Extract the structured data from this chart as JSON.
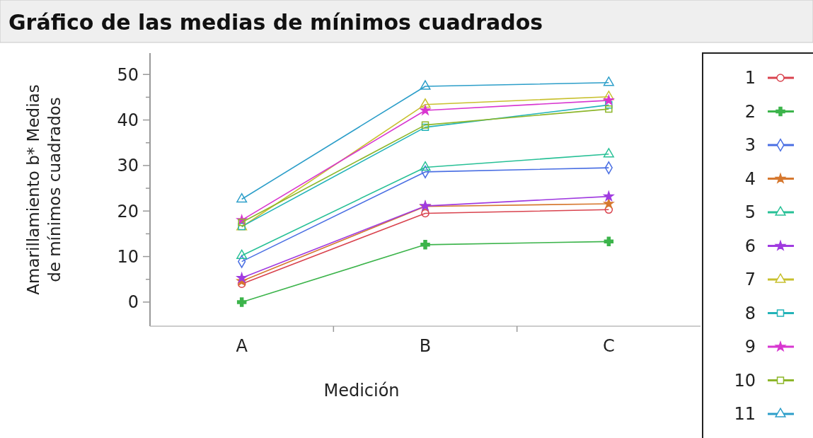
{
  "chart_data": {
    "type": "line",
    "title": "Gráfico de las medias de mínimos cuadrados",
    "xlabel": "Medición",
    "ylabel": "Amarillamiento b* Medias\nde mínimos cuadrados",
    "categories": [
      "A",
      "B",
      "C"
    ],
    "series": [
      {
        "name": "1",
        "color": "#d9434e",
        "marker": "circle",
        "values": [
          4.0,
          19.5,
          20.3
        ]
      },
      {
        "name": "2",
        "color": "#3cb44b",
        "marker": "cross",
        "values": [
          0,
          12.6,
          13.3
        ]
      },
      {
        "name": "3",
        "color": "#4a6fe3",
        "marker": "diamond",
        "values": [
          8.9,
          28.6,
          29.5
        ]
      },
      {
        "name": "4",
        "color": "#d6782f",
        "marker": "star",
        "values": [
          4.6,
          21.0,
          21.6
        ]
      },
      {
        "name": "5",
        "color": "#27c096",
        "marker": "triangle",
        "values": [
          10.2,
          29.6,
          32.5
        ]
      },
      {
        "name": "6",
        "color": "#a03be0",
        "marker": "star",
        "values": [
          5.3,
          21.1,
          23.2
        ]
      },
      {
        "name": "7",
        "color": "#c8c02e",
        "marker": "triangle",
        "values": [
          16.5,
          43.4,
          45.1
        ]
      },
      {
        "name": "8",
        "color": "#22b3b8",
        "marker": "square",
        "values": [
          16.6,
          38.4,
          43.3
        ]
      },
      {
        "name": "9",
        "color": "#d836d0",
        "marker": "star",
        "values": [
          18.0,
          42.1,
          44.3
        ]
      },
      {
        "name": "10",
        "color": "#8db62a",
        "marker": "square",
        "values": [
          17.5,
          38.9,
          42.4
        ]
      },
      {
        "name": "11",
        "color": "#2c9ec9",
        "marker": "triangle",
        "values": [
          22.6,
          47.4,
          48.2
        ]
      }
    ],
    "ylim": [
      -5.3,
      54.7
    ],
    "yticks": [
      0,
      10,
      20,
      30,
      40,
      50
    ],
    "grid": false,
    "legend": "right"
  }
}
